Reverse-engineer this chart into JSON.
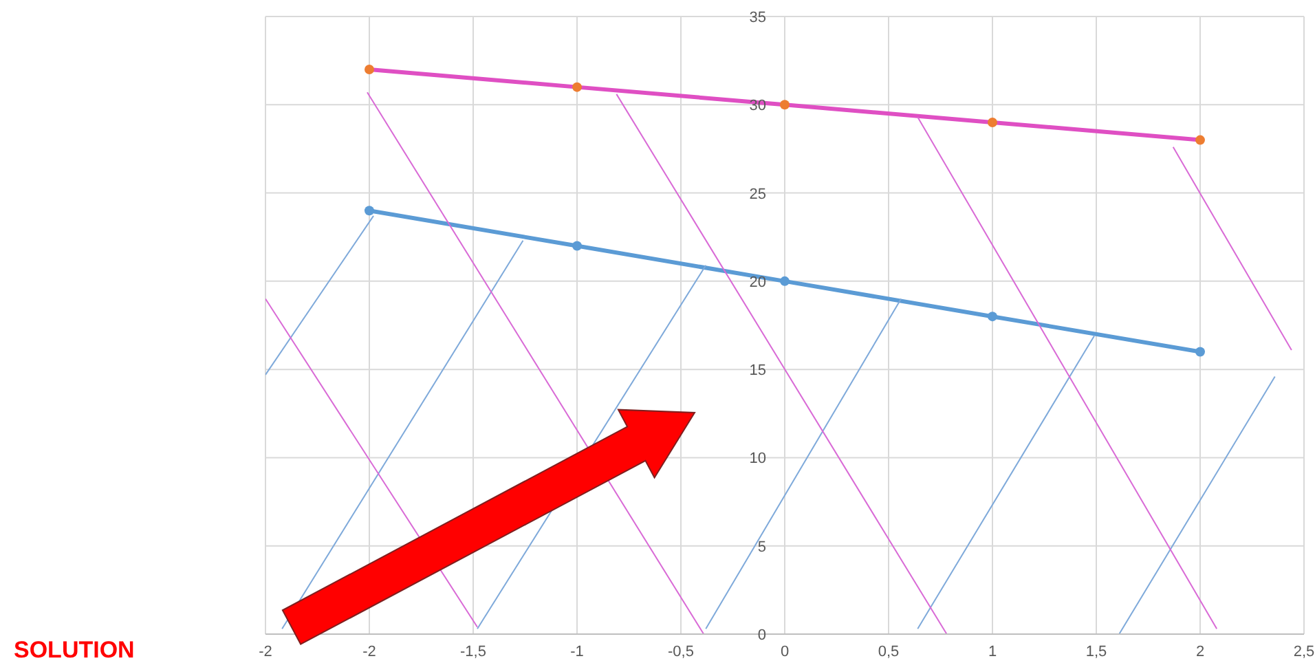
{
  "chart_data": {
    "type": "line",
    "x": [
      -2,
      -1,
      0,
      1,
      2
    ],
    "xlim": [
      -2.5,
      2.5
    ],
    "xticks": [
      {
        "value": -2.5,
        "label": "-2"
      },
      -2,
      {
        "value": -1.5,
        "label": "-1,5"
      },
      -1,
      {
        "value": -0.5,
        "label": "-0,5"
      },
      0,
      {
        "value": 0.5,
        "label": "0,5"
      },
      1,
      {
        "value": 1.5,
        "label": "1,5"
      },
      2,
      {
        "value": 2.5,
        "label": "2,5"
      }
    ],
    "ylim": [
      0,
      35
    ],
    "yticks": [
      0,
      5,
      10,
      15,
      20,
      25,
      30,
      35
    ],
    "grid": true,
    "annotations": [
      "SOLUTION"
    ],
    "series": [
      {
        "color": "#5b9bd5",
        "values": [
          24,
          22,
          20,
          18,
          16
        ],
        "marker": "circle"
      },
      {
        "color": "#df4fc3",
        "values": [
          32,
          31,
          30,
          29,
          28
        ],
        "colors": [
          "#ed7d31",
          "#ed7d31",
          "#ed7d31",
          "#ed7d31",
          "#ed7d31"
        ],
        "marker": "circle"
      },
      {
        "color": "#7ea9da",
        "x": [
          -2.5,
          -1.98
        ],
        "values": [
          14.7,
          23.7
        ],
        "marker": "none"
      },
      {
        "color": "#7ea9da",
        "x": [
          -2.42,
          -1.26
        ],
        "values": [
          0.3,
          22.3
        ],
        "marker": "none"
      },
      {
        "color": "#7ea9da",
        "x": [
          -1.48,
          -0.38
        ],
        "values": [
          0.3,
          20.9
        ],
        "marker": "none"
      },
      {
        "color": "#7ea9da",
        "x": [
          -0.38,
          0.56
        ],
        "values": [
          0.3,
          19
        ],
        "marker": "none"
      },
      {
        "color": "#7ea9da",
        "x": [
          0.64,
          1.49
        ],
        "values": [
          0.3,
          16.9
        ],
        "marker": "none"
      },
      {
        "color": "#7ea9da",
        "x": [
          1.61,
          2.36
        ],
        "values": [
          0,
          14.6
        ],
        "marker": "none"
      },
      {
        "color": "#d96ad6",
        "x": [
          -2.5,
          -1.48
        ],
        "values": [
          19,
          0.4
        ],
        "marker": "none"
      },
      {
        "color": "#d96ad6",
        "x": [
          -2.01,
          -0.39
        ],
        "values": [
          30.7,
          0
        ],
        "marker": "none"
      },
      {
        "color": "#d96ad6",
        "x": [
          -0.81,
          0.78
        ],
        "values": [
          30.6,
          0
        ],
        "marker": "none"
      },
      {
        "color": "#d96ad6",
        "x": [
          0.64,
          2.08
        ],
        "values": [
          29.3,
          0.3
        ],
        "marker": "none"
      },
      {
        "color": "#d96ad6",
        "x": [
          1.87,
          2.44
        ],
        "values": [
          27.6,
          16.1
        ],
        "marker": "none"
      }
    ]
  }
}
